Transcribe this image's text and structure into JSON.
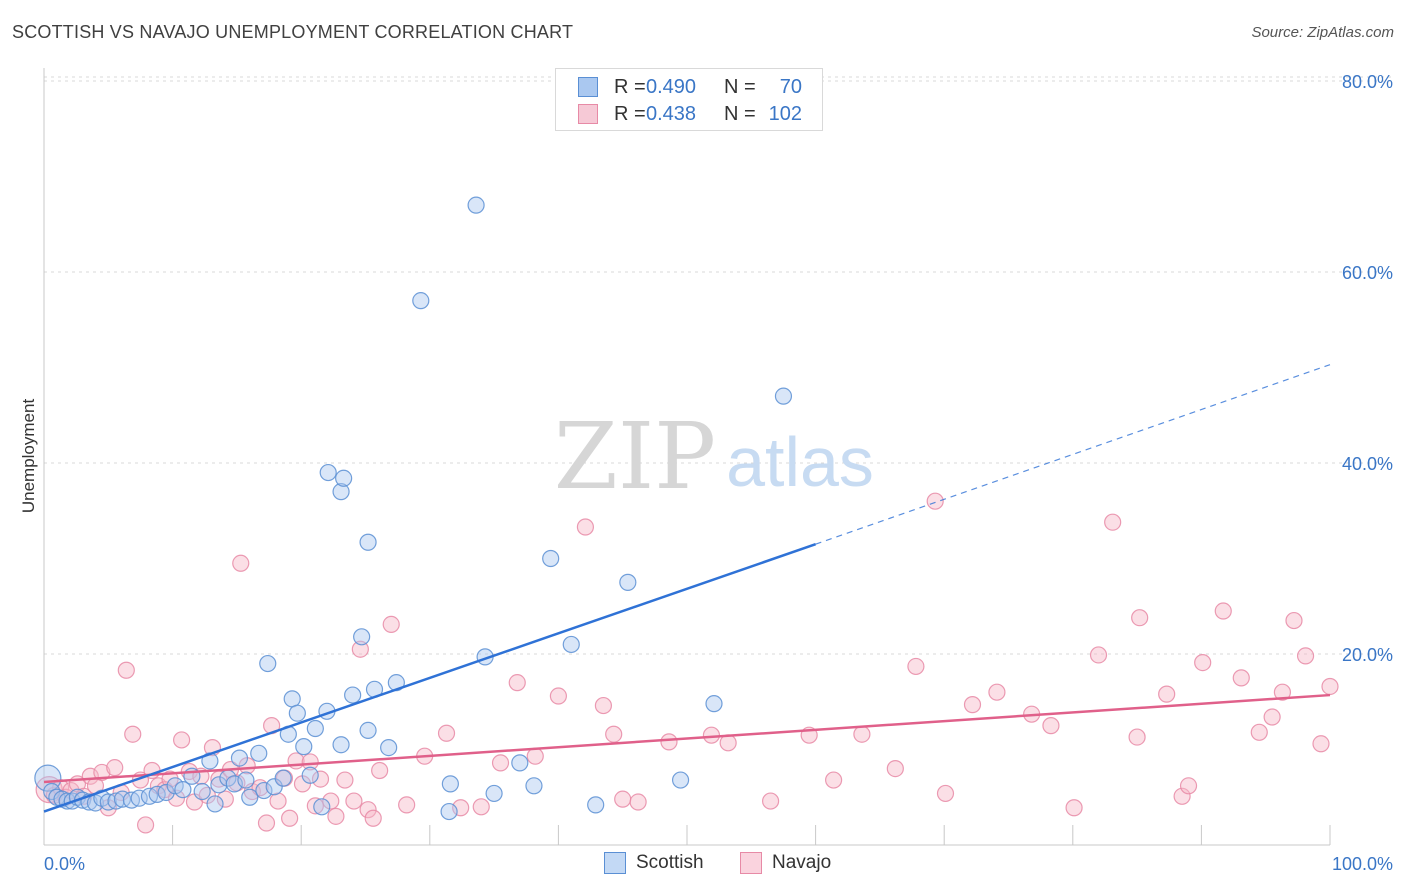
{
  "title": "SCOTTISH VS NAVAJO UNEMPLOYMENT CORRELATION CHART",
  "source": "Source: ZipAtlas.com",
  "watermark": {
    "zip": "ZIP",
    "atlas": "atlas"
  },
  "legend_top": [
    {
      "r_label": "R =",
      "r_value": "0.490",
      "n_label": "N =",
      "n_value": "70"
    },
    {
      "r_label": "R =",
      "r_value": "0.438",
      "n_label": "N =",
      "n_value": "102"
    }
  ],
  "colors": {
    "scottish_fill": "#aac8f0",
    "scottish_stroke": "#5a8fd4",
    "scottish_line": "#2f72d6",
    "navajo_fill": "#f6b8c8",
    "navajo_stroke": "#e78aa6",
    "navajo_line": "#e0608a",
    "axis_text": "#3a76c6",
    "grid": "#d8d8d8"
  },
  "chart_data": {
    "type": "scatter",
    "title": "SCOTTISH VS NAVAJO UNEMPLOYMENT CORRELATION CHART",
    "xlabel": "",
    "ylabel": "Unemployment",
    "xlim": [
      0,
      100
    ],
    "ylim": [
      0,
      83
    ],
    "x_tick_labels": [
      "0.0%",
      "100.0%"
    ],
    "y_ticks": [
      20,
      40,
      60,
      80
    ],
    "y_tick_labels": [
      "20.0%",
      "40.0%",
      "60.0%",
      "80.0%"
    ],
    "grid": true,
    "legend_position": "bottom-center",
    "series": [
      {
        "name": "Scottish",
        "stats": {
          "R": 0.49,
          "N": 70
        },
        "trend": {
          "x0": 0,
          "y0": 3.5,
          "x1": 60,
          "y1": 31.5,
          "dashed_to_x": 100,
          "dashed_to_y": 50.3
        },
        "points": [
          [
            0.3,
            7.0
          ],
          [
            0.6,
            5.6
          ],
          [
            1.0,
            5.0
          ],
          [
            1.4,
            4.8
          ],
          [
            1.8,
            4.6
          ],
          [
            2.2,
            4.6
          ],
          [
            2.6,
            5.0
          ],
          [
            3.0,
            4.7
          ],
          [
            3.5,
            4.5
          ],
          [
            4.0,
            4.4
          ],
          [
            4.5,
            4.9
          ],
          [
            5.0,
            4.5
          ],
          [
            5.6,
            4.6
          ],
          [
            6.1,
            4.8
          ],
          [
            6.8,
            4.7
          ],
          [
            7.4,
            4.9
          ],
          [
            8.2,
            5.1
          ],
          [
            8.8,
            5.3
          ],
          [
            9.5,
            5.5
          ],
          [
            10.2,
            6.2
          ],
          [
            10.8,
            5.8
          ],
          [
            11.5,
            7.2
          ],
          [
            12.3,
            5.6
          ],
          [
            12.9,
            8.8
          ],
          [
            13.6,
            6.3
          ],
          [
            14.3,
            7.0
          ],
          [
            13.3,
            4.3
          ],
          [
            14.8,
            6.4
          ],
          [
            15.2,
            9.1
          ],
          [
            15.7,
            6.8
          ],
          [
            16.0,
            5.0
          ],
          [
            16.7,
            9.6
          ],
          [
            17.1,
            5.7
          ],
          [
            17.4,
            19.0
          ],
          [
            17.9,
            6.1
          ],
          [
            18.6,
            7.0
          ],
          [
            19.0,
            11.6
          ],
          [
            19.3,
            15.3
          ],
          [
            19.7,
            13.8
          ],
          [
            20.2,
            10.3
          ],
          [
            20.7,
            7.3
          ],
          [
            21.1,
            12.2
          ],
          [
            22.0,
            14.0
          ],
          [
            21.6,
            4.0
          ],
          [
            23.1,
            10.5
          ],
          [
            24.0,
            15.7
          ],
          [
            24.7,
            21.8
          ],
          [
            25.2,
            12.0
          ],
          [
            25.7,
            16.3
          ],
          [
            26.8,
            10.2
          ],
          [
            27.4,
            17.0
          ],
          [
            22.1,
            39.0
          ],
          [
            23.1,
            37.0
          ],
          [
            23.3,
            38.4
          ],
          [
            25.2,
            31.7
          ],
          [
            29.3,
            57.0
          ],
          [
            31.5,
            3.5
          ],
          [
            31.6,
            6.4
          ],
          [
            33.6,
            67.0
          ],
          [
            34.3,
            19.7
          ],
          [
            35.0,
            5.4
          ],
          [
            37.0,
            8.6
          ],
          [
            38.1,
            6.2
          ],
          [
            39.4,
            30.0
          ],
          [
            41.0,
            21.0
          ],
          [
            42.9,
            4.2
          ],
          [
            45.4,
            27.5
          ],
          [
            49.5,
            6.8
          ],
          [
            52.1,
            14.8
          ],
          [
            57.5,
            47.0
          ]
        ]
      },
      {
        "name": "Navajo",
        "stats": {
          "R": 0.438,
          "N": 102
        },
        "trend": {
          "x0": 0,
          "y0": 6.6,
          "x1": 100,
          "y1": 15.7
        },
        "points": [
          [
            0.4,
            5.8
          ],
          [
            0.8,
            5.2
          ],
          [
            1.3,
            6.0
          ],
          [
            1.7,
            5.0
          ],
          [
            2.1,
            5.7
          ],
          [
            2.6,
            6.4
          ],
          [
            3.1,
            5.1
          ],
          [
            3.6,
            7.2
          ],
          [
            4.0,
            6.2
          ],
          [
            4.5,
            7.6
          ],
          [
            5.0,
            3.9
          ],
          [
            5.5,
            8.1
          ],
          [
            6.0,
            5.5
          ],
          [
            6.4,
            18.3
          ],
          [
            6.9,
            11.6
          ],
          [
            7.5,
            6.8
          ],
          [
            7.9,
            2.1
          ],
          [
            8.4,
            7.8
          ],
          [
            8.9,
            6.2
          ],
          [
            9.4,
            5.8
          ],
          [
            9.8,
            6.9
          ],
          [
            10.3,
            4.9
          ],
          [
            10.7,
            11.0
          ],
          [
            11.3,
            7.7
          ],
          [
            11.7,
            4.5
          ],
          [
            12.2,
            7.2
          ],
          [
            12.7,
            5.2
          ],
          [
            13.1,
            10.2
          ],
          [
            13.6,
            6.9
          ],
          [
            14.1,
            4.8
          ],
          [
            14.5,
            7.9
          ],
          [
            15.0,
            6.5
          ],
          [
            15.3,
            29.5
          ],
          [
            15.8,
            8.3
          ],
          [
            16.2,
            5.6
          ],
          [
            16.8,
            6.0
          ],
          [
            17.3,
            2.3
          ],
          [
            17.7,
            12.5
          ],
          [
            18.2,
            4.6
          ],
          [
            18.7,
            7.0
          ],
          [
            19.1,
            2.8
          ],
          [
            19.6,
            8.8
          ],
          [
            20.1,
            6.4
          ],
          [
            20.7,
            8.7
          ],
          [
            21.1,
            4.1
          ],
          [
            21.5,
            6.9
          ],
          [
            22.3,
            4.6
          ],
          [
            22.7,
            3.0
          ],
          [
            23.4,
            6.8
          ],
          [
            24.1,
            4.6
          ],
          [
            24.6,
            20.5
          ],
          [
            25.2,
            3.7
          ],
          [
            25.6,
            2.8
          ],
          [
            26.1,
            7.8
          ],
          [
            27.0,
            23.1
          ],
          [
            28.2,
            4.2
          ],
          [
            29.6,
            9.3
          ],
          [
            31.3,
            11.7
          ],
          [
            32.4,
            3.9
          ],
          [
            34.0,
            4.0
          ],
          [
            35.5,
            8.6
          ],
          [
            36.8,
            17.0
          ],
          [
            38.2,
            9.3
          ],
          [
            40.0,
            15.6
          ],
          [
            42.1,
            33.3
          ],
          [
            43.5,
            14.6
          ],
          [
            44.3,
            11.6
          ],
          [
            45.0,
            4.8
          ],
          [
            46.2,
            4.5
          ],
          [
            48.6,
            10.8
          ],
          [
            51.9,
            11.5
          ],
          [
            53.2,
            10.7
          ],
          [
            56.5,
            4.6
          ],
          [
            59.5,
            11.5
          ],
          [
            61.4,
            6.8
          ],
          [
            63.6,
            11.6
          ],
          [
            66.2,
            8.0
          ],
          [
            67.8,
            18.7
          ],
          [
            69.3,
            36.0
          ],
          [
            70.1,
            5.4
          ],
          [
            72.2,
            14.7
          ],
          [
            74.1,
            16.0
          ],
          [
            76.8,
            13.7
          ],
          [
            78.3,
            12.5
          ],
          [
            80.1,
            3.9
          ],
          [
            82.0,
            19.9
          ],
          [
            83.1,
            33.8
          ],
          [
            85.0,
            11.3
          ],
          [
            85.2,
            23.8
          ],
          [
            87.3,
            15.8
          ],
          [
            88.5,
            5.1
          ],
          [
            89.0,
            6.2
          ],
          [
            90.1,
            19.1
          ],
          [
            91.7,
            24.5
          ],
          [
            93.1,
            17.5
          ],
          [
            94.5,
            11.8
          ],
          [
            95.5,
            13.4
          ],
          [
            96.3,
            16.0
          ],
          [
            97.2,
            23.5
          ],
          [
            98.1,
            19.8
          ],
          [
            99.3,
            10.6
          ],
          [
            100.0,
            16.6
          ]
        ]
      }
    ]
  },
  "legend_bottom": [
    {
      "label": "Scottish"
    },
    {
      "label": "Navajo"
    }
  ]
}
